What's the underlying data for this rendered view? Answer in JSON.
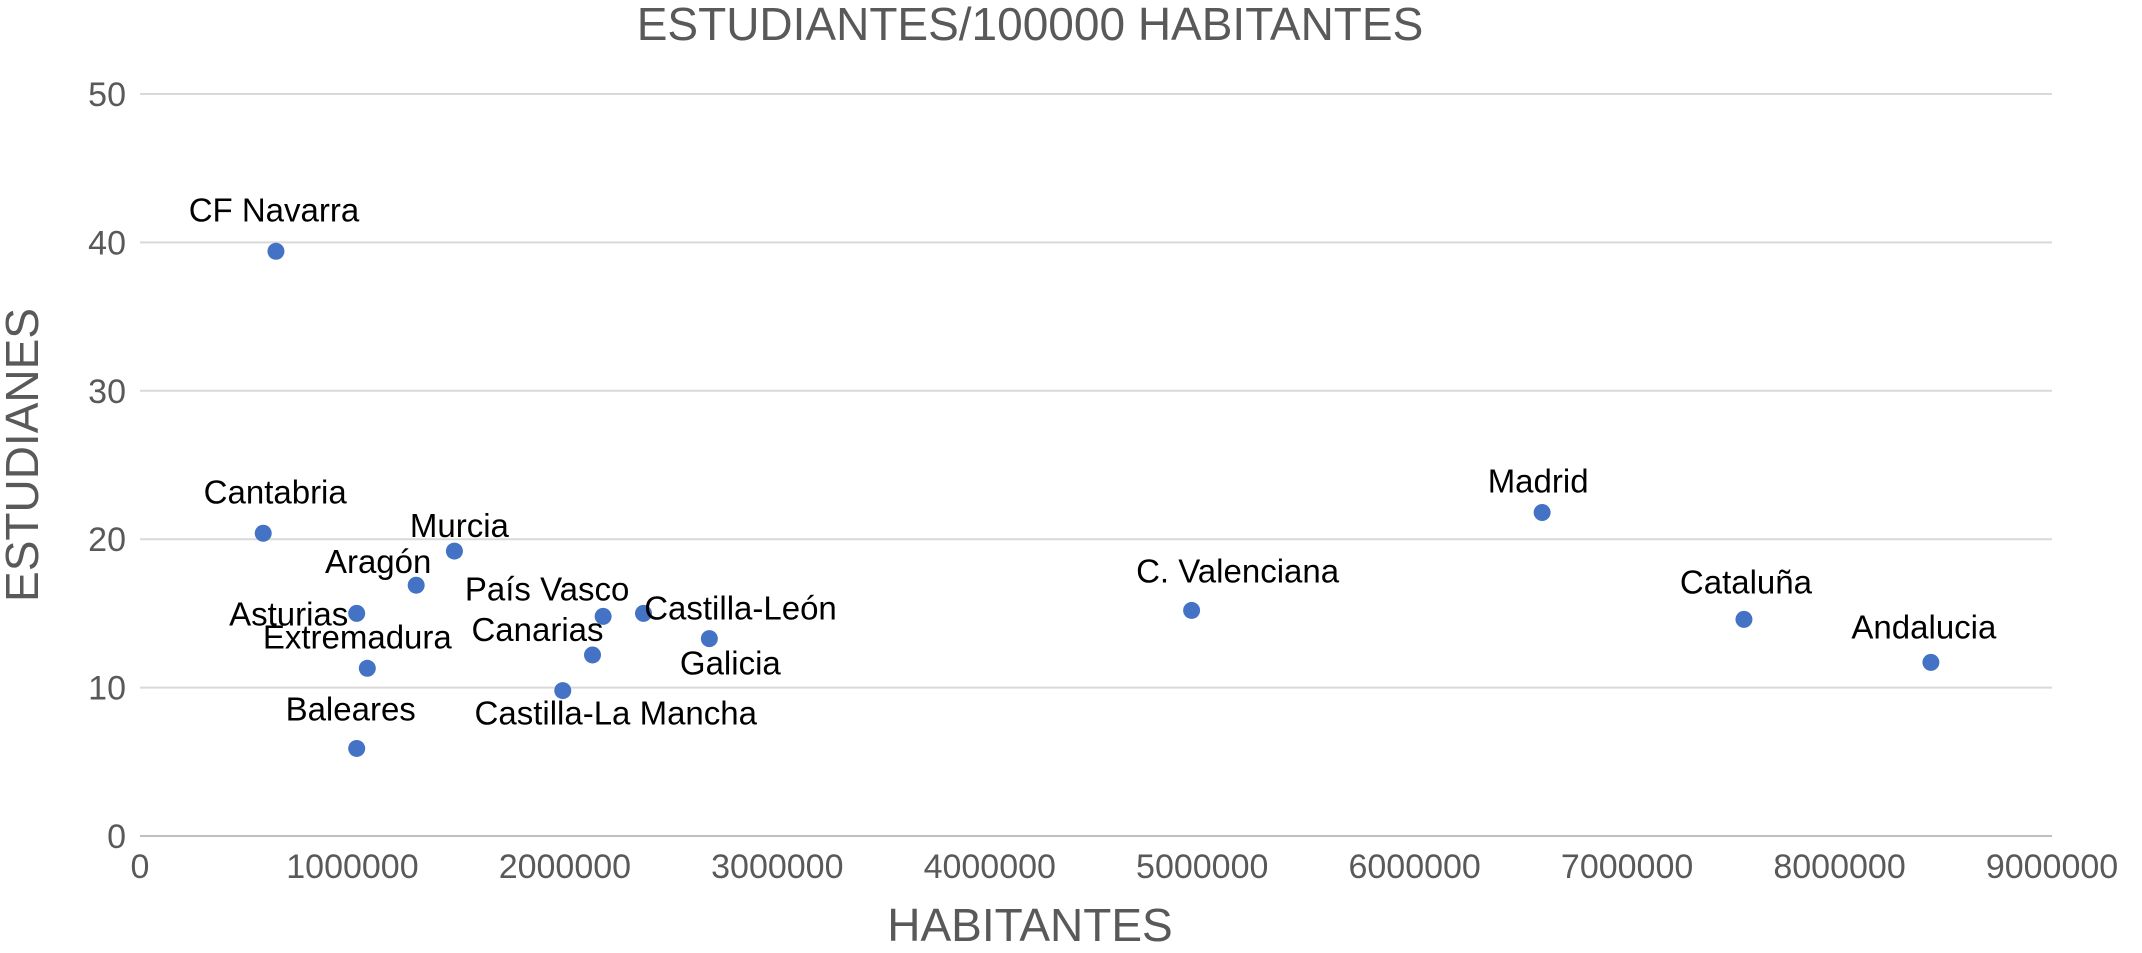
{
  "chart_data": {
    "type": "scatter",
    "title": "ESTUDIANTES/100000 HABITANTES",
    "xlabel": "HABITANTES",
    "ylabel": "ESTUDIANES",
    "xlim": [
      0,
      9000000
    ],
    "ylim": [
      0,
      50
    ],
    "x_ticks": [
      "0",
      "1000000",
      "2000000",
      "3000000",
      "4000000",
      "5000000",
      "6000000",
      "7000000",
      "8000000",
      "9000000"
    ],
    "y_ticks": [
      "0",
      "10",
      "20",
      "30",
      "40",
      "50"
    ],
    "x_tick_values": [
      0,
      1000000,
      2000000,
      3000000,
      4000000,
      5000000,
      6000000,
      7000000,
      8000000,
      9000000
    ],
    "y_tick_values": [
      0,
      10,
      20,
      30,
      40,
      50
    ],
    "grid": true,
    "marker_color": "#4472c4",
    "points": [
      {
        "label": "CF Navarra",
        "x": 640000,
        "y": 39.4
      },
      {
        "label": "Cantabria",
        "x": 580000,
        "y": 20.4
      },
      {
        "label": "Murcia",
        "x": 1480000,
        "y": 19.2
      },
      {
        "label": "Aragón",
        "x": 1300000,
        "y": 16.9
      },
      {
        "label": "Asturias",
        "x": 1020000,
        "y": 15.0
      },
      {
        "label": "Extremadura",
        "x": 1070000,
        "y": 11.3
      },
      {
        "label": "Baleares",
        "x": 1020000,
        "y": 5.9
      },
      {
        "label": "País Vasco",
        "x": 2180000,
        "y": 14.8
      },
      {
        "label": "Castilla-León",
        "x": 2370000,
        "y": 15.0
      },
      {
        "label": "Canarias",
        "x": 2130000,
        "y": 12.2
      },
      {
        "label": "Galicia",
        "x": 2680000,
        "y": 13.3
      },
      {
        "label": "Castilla-La Mancha",
        "x": 1990000,
        "y": 9.8
      },
      {
        "label": "C. Valenciana",
        "x": 4950000,
        "y": 15.2
      },
      {
        "label": "Madrid",
        "x": 6600000,
        "y": 21.8
      },
      {
        "label": "Cataluña",
        "x": 7550000,
        "y": 14.6
      },
      {
        "label": "Andalucia",
        "x": 8430000,
        "y": 11.7
      }
    ]
  }
}
